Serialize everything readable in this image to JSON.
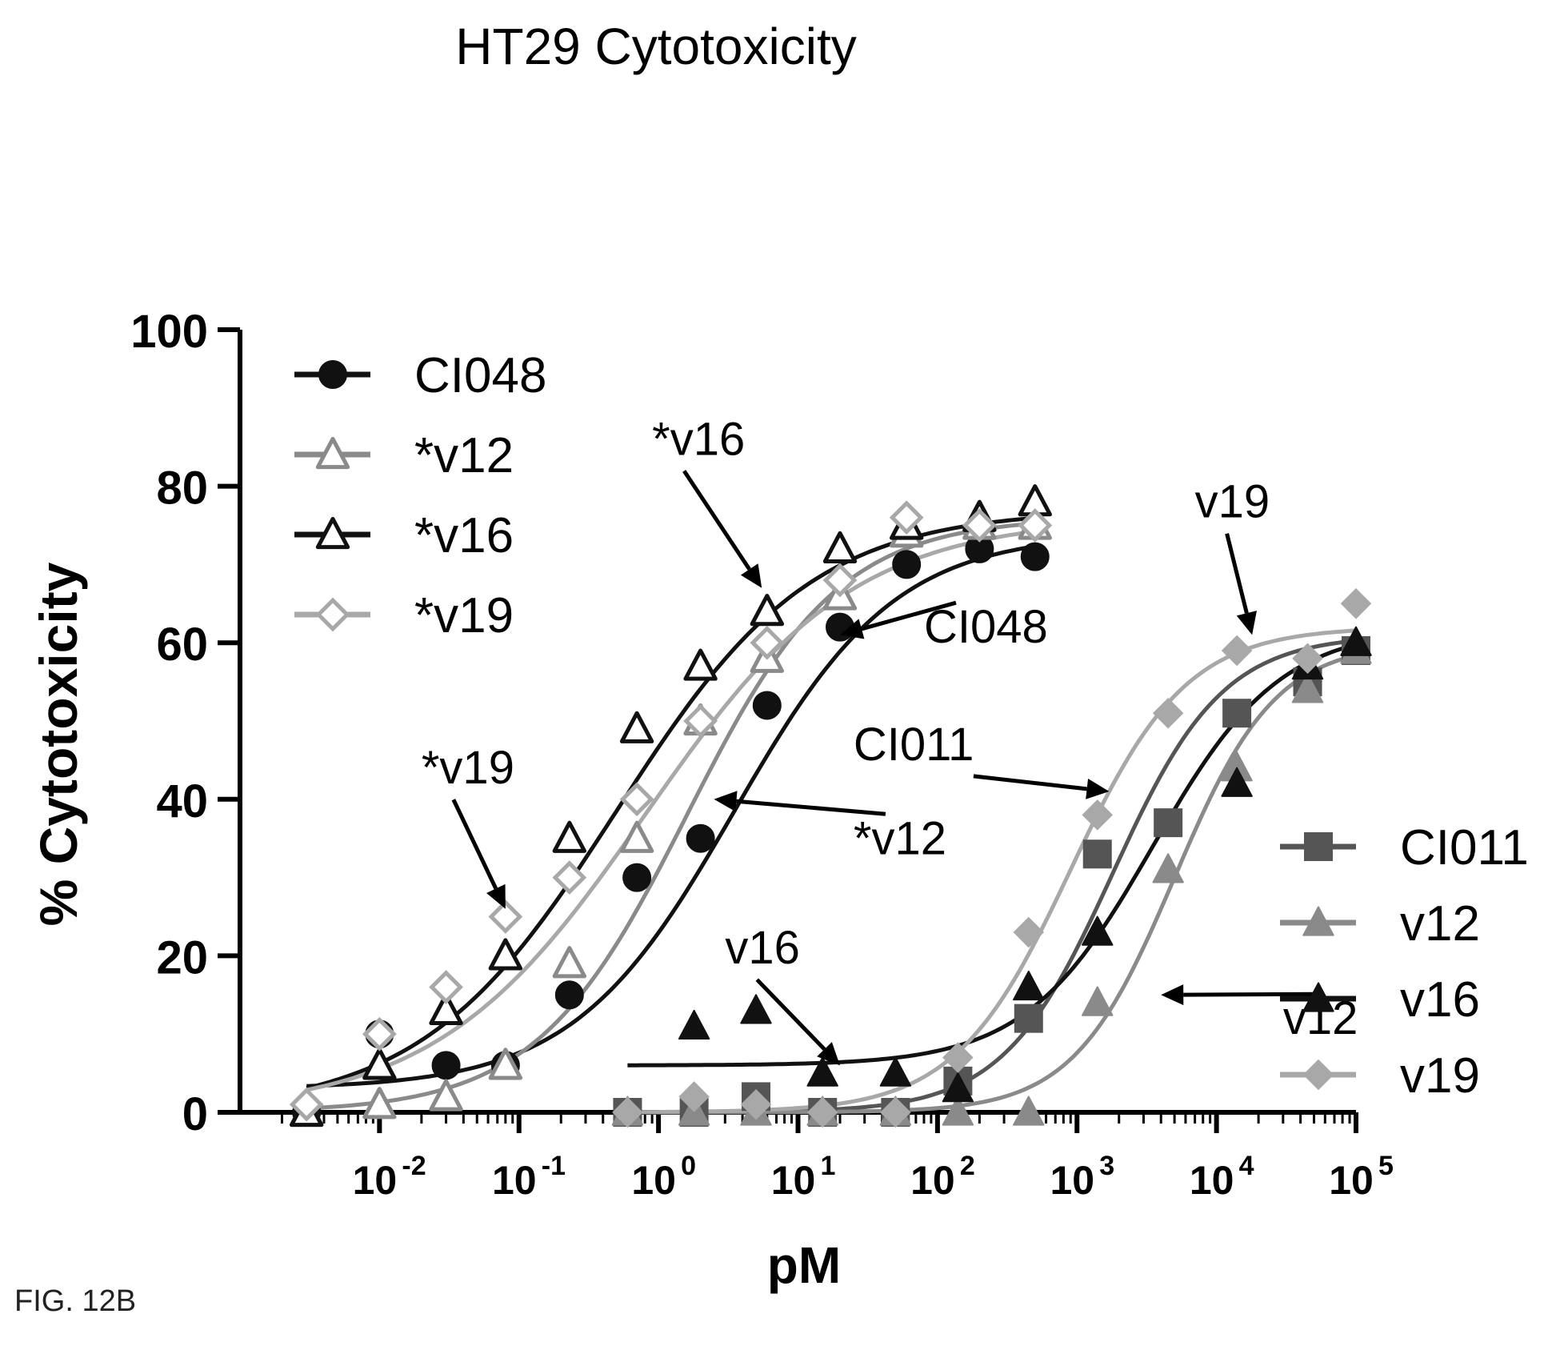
{
  "figure_label": "FIG. 12B",
  "colors": {
    "black": "#111111",
    "gray": "#8a8a8a",
    "light_gray": "#a8a8a8"
  },
  "chart_data": {
    "type": "scatter",
    "title": "HT29 Cytotoxicity",
    "xlabel": "pM",
    "ylabel": "% Cytotoxicity",
    "x_scale": "log",
    "xlim": [
      0.001,
      100000
    ],
    "ylim": [
      0,
      100
    ],
    "y_ticks": [
      "0",
      "20",
      "40",
      "60",
      "80",
      "100"
    ],
    "x_tick_bases": [
      "10",
      "10",
      "10",
      "10",
      "10",
      "10",
      "10",
      "10"
    ],
    "x_tick_exponents": [
      "-2",
      "-1",
      "0",
      "1",
      "2",
      "3",
      "4",
      "5"
    ],
    "x_tick_values": [
      0.01,
      0.1,
      1,
      10,
      100,
      1000,
      10000,
      100000
    ],
    "legend_top_left": [
      "CI048",
      "*v12",
      "*v16",
      "*v19"
    ],
    "legend_right": [
      "CI011",
      "v12",
      "v16",
      "v19"
    ],
    "series": [
      {
        "name": "CI048",
        "marker": "circle-filled",
        "color": "#111111",
        "x": [
          0.003,
          0.01,
          0.03,
          0.08,
          0.23,
          0.7,
          2.0,
          6.0,
          20,
          60,
          200,
          500
        ],
        "y": [
          0,
          10,
          6,
          6,
          15,
          30,
          35,
          52,
          62,
          70,
          72,
          71
        ],
        "curve": {
          "bottom": 3,
          "top": 74,
          "ec50": 3.5,
          "hill": 0.75
        }
      },
      {
        "name": "*v12",
        "marker": "triangle-open",
        "color": "#8a8a8a",
        "x": [
          0.003,
          0.01,
          0.03,
          0.08,
          0.23,
          0.7,
          2.0,
          6.0,
          20,
          60,
          200,
          500
        ],
        "y": [
          0,
          1,
          2,
          6,
          19,
          35,
          50,
          58,
          66,
          74,
          75,
          75
        ],
        "curve": {
          "bottom": 0,
          "top": 76,
          "ec50": 1.6,
          "hill": 0.8
        }
      },
      {
        "name": "*v16",
        "marker": "triangle-open",
        "color": "#111111",
        "x": [
          0.003,
          0.01,
          0.03,
          0.08,
          0.23,
          0.7,
          2.0,
          6.0,
          20,
          60,
          200,
          500
        ],
        "y": [
          0,
          6,
          13,
          20,
          35,
          49,
          57,
          64,
          72,
          75,
          76,
          78
        ],
        "curve": {
          "bottom": 0,
          "top": 77,
          "ec50": 0.5,
          "hill": 0.62
        }
      },
      {
        "name": "*v19",
        "marker": "diamond-open",
        "color": "#a8a8a8",
        "x": [
          0.003,
          0.01,
          0.03,
          0.08,
          0.23,
          0.7,
          2.0,
          6.0,
          20,
          60,
          200,
          500
        ],
        "y": [
          1,
          10,
          16,
          25,
          30,
          40,
          50,
          60,
          68,
          76,
          75,
          75
        ],
        "curve": {
          "bottom": 0,
          "top": 76,
          "ec50": 0.8,
          "hill": 0.58
        }
      },
      {
        "name": "CI011",
        "marker": "square-filled",
        "color": "#555555",
        "x": [
          0.6,
          1.8,
          5.0,
          15,
          50,
          140,
          450,
          1400,
          4500,
          14000,
          45000,
          100000
        ],
        "y": [
          0,
          0,
          2,
          0,
          0,
          4,
          12,
          33,
          37,
          51,
          55,
          59
        ],
        "curve": {
          "bottom": 0,
          "top": 61,
          "ec50": 1800,
          "hill": 1.1
        }
      },
      {
        "name": "v12",
        "marker": "triangle-filled",
        "color": "#8a8a8a",
        "x": [
          0.6,
          1.8,
          5.0,
          15,
          50,
          140,
          450,
          1400,
          4500,
          14000,
          45000,
          100000
        ],
        "y": [
          0,
          0,
          0,
          0,
          0,
          0,
          0,
          14,
          31,
          44,
          54,
          59
        ],
        "curve": {
          "bottom": 0,
          "top": 60,
          "ec50": 5000,
          "hill": 1.2
        }
      },
      {
        "name": "v16",
        "marker": "triangle-filled",
        "color": "#111111",
        "x": [
          1.8,
          5.0,
          15,
          50,
          140,
          450,
          1400,
          14000,
          45000,
          100000
        ],
        "y": [
          11,
          13,
          5,
          5,
          3,
          16,
          23,
          42,
          57,
          60
        ],
        "curve": {
          "bottom": 6,
          "top": 62,
          "ec50": 3500,
          "hill": 0.95,
          "xmin": 0.6
        }
      },
      {
        "name": "v19",
        "marker": "diamond-filled",
        "color": "#a8a8a8",
        "x": [
          0.6,
          1.8,
          5.0,
          15,
          50,
          140,
          450,
          1400,
          4500,
          14000,
          45000,
          100000
        ],
        "y": [
          0,
          2,
          1,
          0,
          0,
          7,
          23,
          38,
          51,
          59,
          58,
          65
        ],
        "curve": {
          "bottom": 0,
          "top": 62,
          "ec50": 900,
          "hill": 1.05
        }
      }
    ],
    "annotations": [
      {
        "text": "*v16",
        "x_text": 0.9,
        "y_text": 84,
        "x_arrow": 5.5,
        "y_arrow": 67
      },
      {
        "text": "*v12",
        "x_text": 25,
        "y_text": 33,
        "x_arrow": 2.5,
        "y_arrow": 40
      },
      {
        "text": "*v19",
        "x_text": 0.02,
        "y_text": 42,
        "x_arrow": 0.08,
        "y_arrow": 26
      },
      {
        "text": "CI048",
        "x_text": 80,
        "y_text": 60,
        "x_arrow": 20,
        "y_arrow": 61
      },
      {
        "text": "v19",
        "x_text": 7000,
        "y_text": 76,
        "x_arrow": 18000,
        "y_arrow": 61
      },
      {
        "text": "CI011",
        "x_text": 25,
        "y_text": 45,
        "x_arrow": 1700,
        "y_arrow": 41
      },
      {
        "text": "v12",
        "x_text": 30000,
        "y_text": 10,
        "x_arrow": 4000,
        "y_arrow": 15
      },
      {
        "text": "v16",
        "x_text": 3,
        "y_text": 19,
        "x_arrow": 20,
        "y_arrow": 6
      }
    ]
  }
}
